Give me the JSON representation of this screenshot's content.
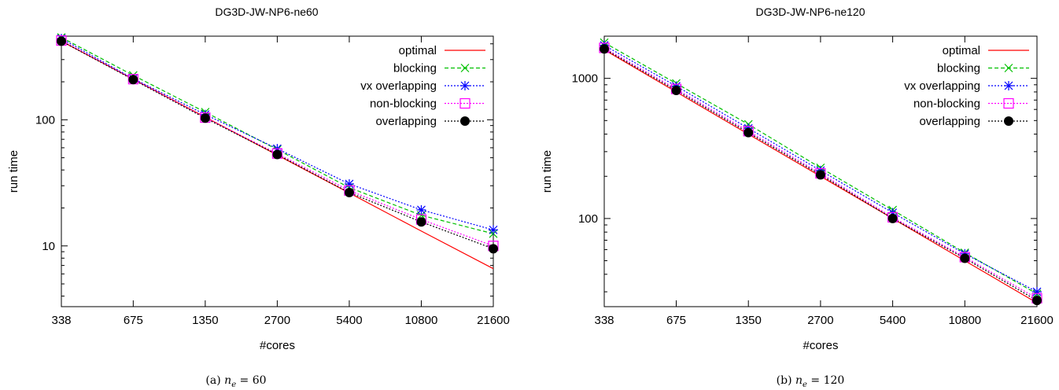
{
  "chart_data": [
    {
      "type": "line",
      "title": "DG3D-JW-NP6-ne60",
      "xlabel": "#cores",
      "ylabel": "run time",
      "xscale": "log",
      "yscale": "log",
      "x": [
        338,
        675,
        1350,
        2700,
        5400,
        10800,
        21600
      ],
      "xtick_labels": [
        "338",
        "675",
        "1350",
        "2700",
        "5400",
        "10800",
        "21600"
      ],
      "yticks": [
        10,
        100
      ],
      "ytick_labels": [
        "10",
        "100"
      ],
      "ylim": [
        3.3,
        460
      ],
      "legend_position": "top-right",
      "grid": false,
      "series": [
        {
          "name": "optimal",
          "color": "#ff0000",
          "marker": "none",
          "dash": "solid",
          "values": [
            420,
            210,
            105,
            52.5,
            26.3,
            13.1,
            6.6
          ]
        },
        {
          "name": "blocking",
          "color": "#00c000",
          "marker": "x",
          "dash": "dashed",
          "values": [
            450,
            225,
            115,
            58,
            29,
            17.5,
            12.5
          ]
        },
        {
          "name": "vx overlapping",
          "color": "#0000ff",
          "marker": "star",
          "dash": "dotted",
          "values": [
            440,
            212,
            110,
            59,
            31,
            19.3,
            13.4
          ]
        },
        {
          "name": "non-blocking",
          "color": "#ff00ff",
          "marker": "square",
          "dash": "dotted",
          "values": [
            425,
            210,
            104,
            54,
            27.5,
            16.2,
            10
          ]
        },
        {
          "name": "overlapping",
          "color": "#000000",
          "marker": "circle",
          "dash": "dotted",
          "values": [
            420,
            208,
            103,
            53,
            26.5,
            15.5,
            9.5
          ]
        }
      ],
      "caption": {
        "prefix": "(a) ",
        "var": "n",
        "sub": "e",
        "rest": " = 60"
      }
    },
    {
      "type": "line",
      "title": "DG3D-JW-NP6-ne120",
      "xlabel": "#cores",
      "ylabel": "run time",
      "xscale": "log",
      "yscale": "log",
      "x": [
        338,
        675,
        1350,
        2700,
        5400,
        10800,
        21600
      ],
      "xtick_labels": [
        "338",
        "675",
        "1350",
        "2700",
        "5400",
        "10800",
        "21600"
      ],
      "yticks": [
        100,
        1000
      ],
      "ytick_labels": [
        "100",
        "1000"
      ],
      "ylim": [
        23.5,
        2000
      ],
      "legend_position": "top-right",
      "grid": false,
      "series": [
        {
          "name": "optimal",
          "color": "#ff0000",
          "marker": "none",
          "dash": "solid",
          "values": [
            1600,
            800,
            400,
            200,
            100,
            50,
            25
          ]
        },
        {
          "name": "blocking",
          "color": "#00c000",
          "marker": "x",
          "dash": "dashed",
          "values": [
            1800,
            920,
            470,
            230,
            115,
            57,
            29
          ]
        },
        {
          "name": "vx overlapping",
          "color": "#0000ff",
          "marker": "star",
          "dash": "dotted",
          "values": [
            1720,
            880,
            440,
            220,
            110,
            56,
            30
          ]
        },
        {
          "name": "non-blocking",
          "color": "#ff00ff",
          "marker": "square",
          "dash": "dotted",
          "values": [
            1650,
            840,
            420,
            210,
            102,
            53,
            27
          ]
        },
        {
          "name": "overlapping",
          "color": "#000000",
          "marker": "circle",
          "dash": "dotted",
          "values": [
            1620,
            820,
            410,
            205,
            100,
            52,
            26
          ]
        }
      ],
      "caption": {
        "prefix": "(b) ",
        "var": "n",
        "sub": "e",
        "rest": " = 120"
      }
    }
  ]
}
